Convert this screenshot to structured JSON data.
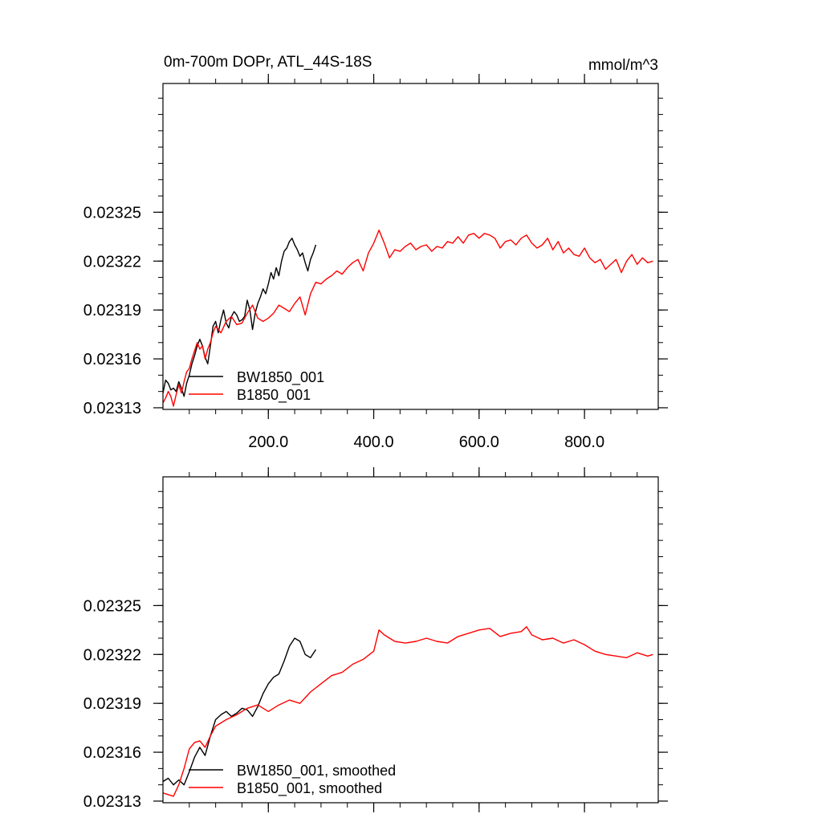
{
  "chart_data": [
    {
      "type": "line",
      "title": "0m-700m DOPr, ATL_44S-18S",
      "units": "mmol/m^3",
      "xlim": [
        0,
        940
      ],
      "ylim": [
        0.023129,
        0.023329
      ],
      "x_ticks": [
        200,
        400,
        600,
        800
      ],
      "x_tick_labels": [
        "200.0",
        "400.0",
        "600.0",
        "800.0"
      ],
      "y_ticks": [
        0.02313,
        0.02316,
        0.02319,
        0.02322,
        0.02325
      ],
      "y_tick_labels": [
        "0.02313",
        "0.02316",
        "0.02319",
        "0.02322",
        "0.02325"
      ],
      "legend_position": "bottom-left",
      "series": [
        {
          "name": "BW1850_001",
          "color": "#000000",
          "points": [
            [
              0,
              0.023139
            ],
            [
              5,
              0.023147
            ],
            [
              10,
              0.023145
            ],
            [
              15,
              0.023141
            ],
            [
              20,
              0.023142
            ],
            [
              25,
              0.02314
            ],
            [
              30,
              0.023146
            ],
            [
              35,
              0.023142
            ],
            [
              40,
              0.023137
            ],
            [
              45,
              0.023145
            ],
            [
              50,
              0.02315
            ],
            [
              55,
              0.023157
            ],
            [
              60,
              0.023162
            ],
            [
              65,
              0.023168
            ],
            [
              70,
              0.023172
            ],
            [
              75,
              0.023168
            ],
            [
              80,
              0.023161
            ],
            [
              85,
              0.023157
            ],
            [
              90,
              0.023168
            ],
            [
              95,
              0.02318
            ],
            [
              100,
              0.023183
            ],
            [
              105,
              0.023176
            ],
            [
              110,
              0.023184
            ],
            [
              115,
              0.02319
            ],
            [
              120,
              0.023182
            ],
            [
              125,
              0.023179
            ],
            [
              130,
              0.023186
            ],
            [
              135,
              0.023189
            ],
            [
              140,
              0.023187
            ],
            [
              145,
              0.023183
            ],
            [
              150,
              0.023184
            ],
            [
              155,
              0.023186
            ],
            [
              160,
              0.023196
            ],
            [
              165,
              0.02319
            ],
            [
              170,
              0.023178
            ],
            [
              175,
              0.023188
            ],
            [
              180,
              0.023194
            ],
            [
              185,
              0.023198
            ],
            [
              190,
              0.023203
            ],
            [
              195,
              0.0232
            ],
            [
              200,
              0.023206
            ],
            [
              205,
              0.023213
            ],
            [
              210,
              0.023209
            ],
            [
              215,
              0.023216
            ],
            [
              220,
              0.023211
            ],
            [
              225,
              0.02322
            ],
            [
              230,
              0.023226
            ],
            [
              235,
              0.023228
            ],
            [
              240,
              0.023232
            ],
            [
              245,
              0.023234
            ],
            [
              250,
              0.02323
            ],
            [
              255,
              0.023227
            ],
            [
              260,
              0.023223
            ],
            [
              265,
              0.023225
            ],
            [
              270,
              0.023219
            ],
            [
              275,
              0.023214
            ],
            [
              280,
              0.023221
            ],
            [
              285,
              0.023225
            ],
            [
              290,
              0.02323
            ]
          ]
        },
        {
          "name": "B1850_001",
          "color": "#ff0000",
          "points": [
            [
              0,
              0.023133
            ],
            [
              5,
              0.023136
            ],
            [
              10,
              0.02314
            ],
            [
              15,
              0.023137
            ],
            [
              20,
              0.023131
            ],
            [
              25,
              0.023138
            ],
            [
              30,
              0.023144
            ],
            [
              35,
              0.023139
            ],
            [
              40,
              0.023146
            ],
            [
              45,
              0.023152
            ],
            [
              50,
              0.023154
            ],
            [
              55,
              0.02316
            ],
            [
              60,
              0.023165
            ],
            [
              65,
              0.02317
            ],
            [
              70,
              0.023166
            ],
            [
              75,
              0.023168
            ],
            [
              80,
              0.02316
            ],
            [
              85,
              0.023166
            ],
            [
              90,
              0.02317
            ],
            [
              95,
              0.023176
            ],
            [
              100,
              0.02318
            ],
            [
              110,
              0.023176
            ],
            [
              120,
              0.023183
            ],
            [
              130,
              0.023186
            ],
            [
              140,
              0.023181
            ],
            [
              150,
              0.023182
            ],
            [
              160,
              0.023188
            ],
            [
              170,
              0.023193
            ],
            [
              180,
              0.023185
            ],
            [
              190,
              0.023183
            ],
            [
              200,
              0.023185
            ],
            [
              210,
              0.023188
            ],
            [
              220,
              0.023193
            ],
            [
              230,
              0.023191
            ],
            [
              240,
              0.023189
            ],
            [
              250,
              0.023194
            ],
            [
              260,
              0.023198
            ],
            [
              270,
              0.023187
            ],
            [
              280,
              0.0232
            ],
            [
              290,
              0.023207
            ],
            [
              300,
              0.023206
            ],
            [
              310,
              0.023209
            ],
            [
              320,
              0.023211
            ],
            [
              330,
              0.023214
            ],
            [
              340,
              0.023212
            ],
            [
              350,
              0.023216
            ],
            [
              360,
              0.023219
            ],
            [
              370,
              0.023221
            ],
            [
              380,
              0.023214
            ],
            [
              390,
              0.023225
            ],
            [
              400,
              0.023231
            ],
            [
              410,
              0.023239
            ],
            [
              420,
              0.023231
            ],
            [
              430,
              0.023222
            ],
            [
              440,
              0.023227
            ],
            [
              450,
              0.023226
            ],
            [
              460,
              0.023229
            ],
            [
              470,
              0.023231
            ],
            [
              480,
              0.023227
            ],
            [
              490,
              0.023229
            ],
            [
              500,
              0.02323
            ],
            [
              510,
              0.023226
            ],
            [
              520,
              0.023229
            ],
            [
              530,
              0.023228
            ],
            [
              540,
              0.023232
            ],
            [
              550,
              0.023231
            ],
            [
              560,
              0.023235
            ],
            [
              570,
              0.023231
            ],
            [
              580,
              0.023236
            ],
            [
              590,
              0.023237
            ],
            [
              600,
              0.023234
            ],
            [
              610,
              0.023237
            ],
            [
              620,
              0.023236
            ],
            [
              630,
              0.023234
            ],
            [
              640,
              0.023228
            ],
            [
              650,
              0.023232
            ],
            [
              660,
              0.023233
            ],
            [
              670,
              0.02323
            ],
            [
              680,
              0.023234
            ],
            [
              690,
              0.023236
            ],
            [
              700,
              0.023231
            ],
            [
              710,
              0.023228
            ],
            [
              720,
              0.02323
            ],
            [
              730,
              0.023234
            ],
            [
              740,
              0.023227
            ],
            [
              750,
              0.023232
            ],
            [
              760,
              0.023225
            ],
            [
              770,
              0.023228
            ],
            [
              780,
              0.023224
            ],
            [
              790,
              0.023223
            ],
            [
              800,
              0.023228
            ],
            [
              810,
              0.023222
            ],
            [
              820,
              0.023219
            ],
            [
              830,
              0.023221
            ],
            [
              840,
              0.023215
            ],
            [
              850,
              0.023218
            ],
            [
              860,
              0.023221
            ],
            [
              870,
              0.023213
            ],
            [
              880,
              0.02322
            ],
            [
              890,
              0.023224
            ],
            [
              900,
              0.023218
            ],
            [
              910,
              0.023222
            ],
            [
              920,
              0.023219
            ],
            [
              930,
              0.02322
            ]
          ]
        }
      ]
    },
    {
      "type": "line",
      "title": "",
      "xlim": [
        0,
        940
      ],
      "ylim": [
        0.023129,
        0.023329
      ],
      "y_ticks": [
        0.02313,
        0.02316,
        0.02319,
        0.02322,
        0.02325
      ],
      "y_tick_labels": [
        "0.02313",
        "0.02316",
        "0.02319",
        "0.02322",
        "0.02325"
      ],
      "legend_position": "bottom-left",
      "series": [
        {
          "name": "BW1850_001, smoothed",
          "color": "#000000",
          "points": [
            [
              0,
              0.023142
            ],
            [
              10,
              0.023144
            ],
            [
              20,
              0.02314
            ],
            [
              30,
              0.023143
            ],
            [
              40,
              0.02314
            ],
            [
              50,
              0.023148
            ],
            [
              60,
              0.023157
            ],
            [
              70,
              0.023163
            ],
            [
              80,
              0.023158
            ],
            [
              90,
              0.02317
            ],
            [
              100,
              0.02318
            ],
            [
              110,
              0.023183
            ],
            [
              120,
              0.023185
            ],
            [
              130,
              0.023182
            ],
            [
              140,
              0.023184
            ],
            [
              150,
              0.023187
            ],
            [
              160,
              0.023186
            ],
            [
              170,
              0.023182
            ],
            [
              180,
              0.023188
            ],
            [
              190,
              0.023196
            ],
            [
              200,
              0.023202
            ],
            [
              210,
              0.023206
            ],
            [
              220,
              0.023208
            ],
            [
              230,
              0.023216
            ],
            [
              240,
              0.023225
            ],
            [
              250,
              0.02323
            ],
            [
              260,
              0.023228
            ],
            [
              270,
              0.02322
            ],
            [
              280,
              0.023218
            ],
            [
              290,
              0.023223
            ]
          ]
        },
        {
          "name": "B1850_001, smoothed",
          "color": "#ff0000",
          "points": [
            [
              0,
              0.023135
            ],
            [
              10,
              0.023134
            ],
            [
              20,
              0.023133
            ],
            [
              30,
              0.02314
            ],
            [
              40,
              0.02315
            ],
            [
              50,
              0.023162
            ],
            [
              60,
              0.023166
            ],
            [
              70,
              0.023167
            ],
            [
              80,
              0.023163
            ],
            [
              90,
              0.02317
            ],
            [
              100,
              0.023176
            ],
            [
              120,
              0.02318
            ],
            [
              140,
              0.023183
            ],
            [
              160,
              0.023187
            ],
            [
              180,
              0.023189
            ],
            [
              200,
              0.023185
            ],
            [
              220,
              0.023189
            ],
            [
              240,
              0.023192
            ],
            [
              260,
              0.02319
            ],
            [
              280,
              0.023197
            ],
            [
              300,
              0.023202
            ],
            [
              320,
              0.023207
            ],
            [
              340,
              0.023209
            ],
            [
              360,
              0.023214
            ],
            [
              380,
              0.023217
            ],
            [
              400,
              0.023222
            ],
            [
              410,
              0.023235
            ],
            [
              420,
              0.023232
            ],
            [
              440,
              0.023228
            ],
            [
              460,
              0.023227
            ],
            [
              480,
              0.023228
            ],
            [
              500,
              0.02323
            ],
            [
              520,
              0.023228
            ],
            [
              540,
              0.023227
            ],
            [
              560,
              0.023231
            ],
            [
              580,
              0.023233
            ],
            [
              600,
              0.023235
            ],
            [
              620,
              0.023236
            ],
            [
              640,
              0.023231
            ],
            [
              660,
              0.023233
            ],
            [
              680,
              0.023234
            ],
            [
              690,
              0.023237
            ],
            [
              700,
              0.023232
            ],
            [
              720,
              0.023229
            ],
            [
              740,
              0.02323
            ],
            [
              760,
              0.023227
            ],
            [
              780,
              0.023229
            ],
            [
              800,
              0.023226
            ],
            [
              820,
              0.023222
            ],
            [
              840,
              0.02322
            ],
            [
              860,
              0.023219
            ],
            [
              880,
              0.023218
            ],
            [
              900,
              0.023221
            ],
            [
              920,
              0.023219
            ],
            [
              930,
              0.02322
            ]
          ]
        }
      ]
    }
  ]
}
